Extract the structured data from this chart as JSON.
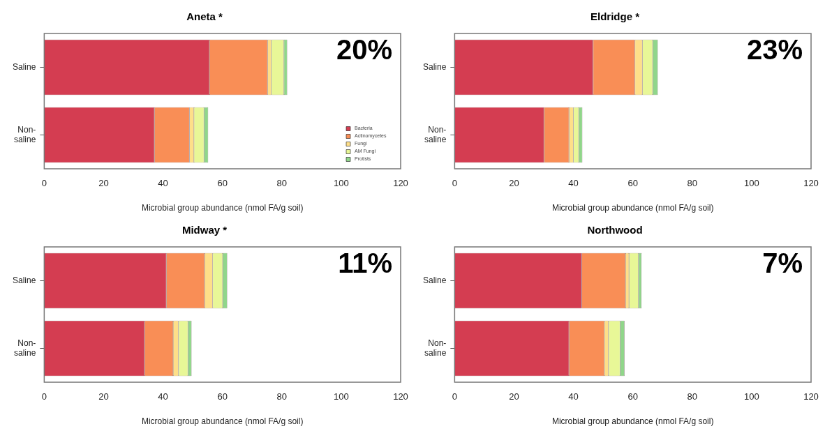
{
  "chart_data": [
    {
      "type": "bar",
      "orientation": "horizontal",
      "stacked": true,
      "title": "Aneta *",
      "xlabel": "Microbial group abundance (nmol FA/g soil)",
      "categories": [
        "Saline",
        "Non-saline"
      ],
      "xlim": [
        0,
        120
      ],
      "xticks": [
        0,
        20,
        40,
        60,
        80,
        100,
        120
      ],
      "grid": false,
      "legend": "bottom right",
      "annotations": [
        "20%"
      ],
      "series": [
        {
          "name": "Bacteria",
          "color": "#d43d51",
          "values": [
            55.6,
            37.1
          ]
        },
        {
          "name": "Actinomycetes",
          "color": "#f98e56",
          "values": [
            19.6,
            11.8
          ]
        },
        {
          "name": "Fungi",
          "color": "#fedf89",
          "values": [
            1.2,
            1.5
          ]
        },
        {
          "name": "AM Fungi",
          "color": "#e8f797",
          "values": [
            4.3,
            3.4
          ]
        },
        {
          "name": "Protists",
          "color": "#90d68a",
          "values": [
            1.1,
            1.4
          ]
        }
      ]
    },
    {
      "type": "bar",
      "orientation": "horizontal",
      "stacked": true,
      "title": "Eldridge *",
      "xlabel": "Microbial group abundance (nmol FA/g soil)",
      "categories": [
        "Saline",
        "Non-saline"
      ],
      "xlim": [
        0,
        120
      ],
      "xticks": [
        0,
        20,
        40,
        60,
        80,
        100,
        120
      ],
      "grid": false,
      "annotations": [
        "23%"
      ],
      "series": [
        {
          "color": "#d43d51",
          "values": [
            46.6,
            30.1
          ]
        },
        {
          "color": "#f98e56",
          "values": [
            14.1,
            8.4
          ]
        },
        {
          "color": "#fedf89",
          "values": [
            2.5,
            1.5
          ]
        },
        {
          "color": "#e8f797",
          "values": [
            3.5,
            1.8
          ]
        },
        {
          "color": "#90d68a",
          "values": [
            1.7,
            1.2
          ]
        }
      ]
    },
    {
      "type": "bar",
      "orientation": "horizontal",
      "stacked": true,
      "title": "Midway *",
      "xlabel": "Microbial group abundance (nmol FA/g soil)",
      "categories": [
        "Saline",
        "Non-saline"
      ],
      "xlim": [
        0,
        120
      ],
      "xticks": [
        0,
        20,
        40,
        60,
        80,
        100,
        120
      ],
      "grid": false,
      "annotations": [
        "11%"
      ],
      "series": [
        {
          "color": "#d43d51",
          "values": [
            41.1,
            33.8
          ]
        },
        {
          "color": "#f98e56",
          "values": [
            12.9,
            9.6
          ]
        },
        {
          "color": "#fedf89",
          "values": [
            2.7,
            1.8
          ]
        },
        {
          "color": "#e8f797",
          "values": [
            3.4,
            3.2
          ]
        },
        {
          "color": "#90d68a",
          "values": [
            1.5,
            1.2
          ]
        }
      ]
    },
    {
      "type": "bar",
      "orientation": "horizontal",
      "stacked": true,
      "title": "Northwood",
      "xlabel": "Microbial group abundance (nmol FA/g soil)",
      "categories": [
        "Saline",
        "Non-saline"
      ],
      "xlim": [
        0,
        120
      ],
      "xticks": [
        0,
        20,
        40,
        60,
        80,
        100,
        120
      ],
      "grid": false,
      "annotations": [
        "7%"
      ],
      "series": [
        {
          "color": "#d43d51",
          "values": [
            42.8,
            38.5
          ]
        },
        {
          "color": "#f98e56",
          "values": [
            14.7,
            11.9
          ]
        },
        {
          "color": "#fedf89",
          "values": [
            1.2,
            1.4
          ]
        },
        {
          "color": "#e8f797",
          "values": [
            3.2,
            3.9
          ]
        },
        {
          "color": "#90d68a",
          "values": [
            1.0,
            1.5
          ]
        }
      ]
    }
  ]
}
